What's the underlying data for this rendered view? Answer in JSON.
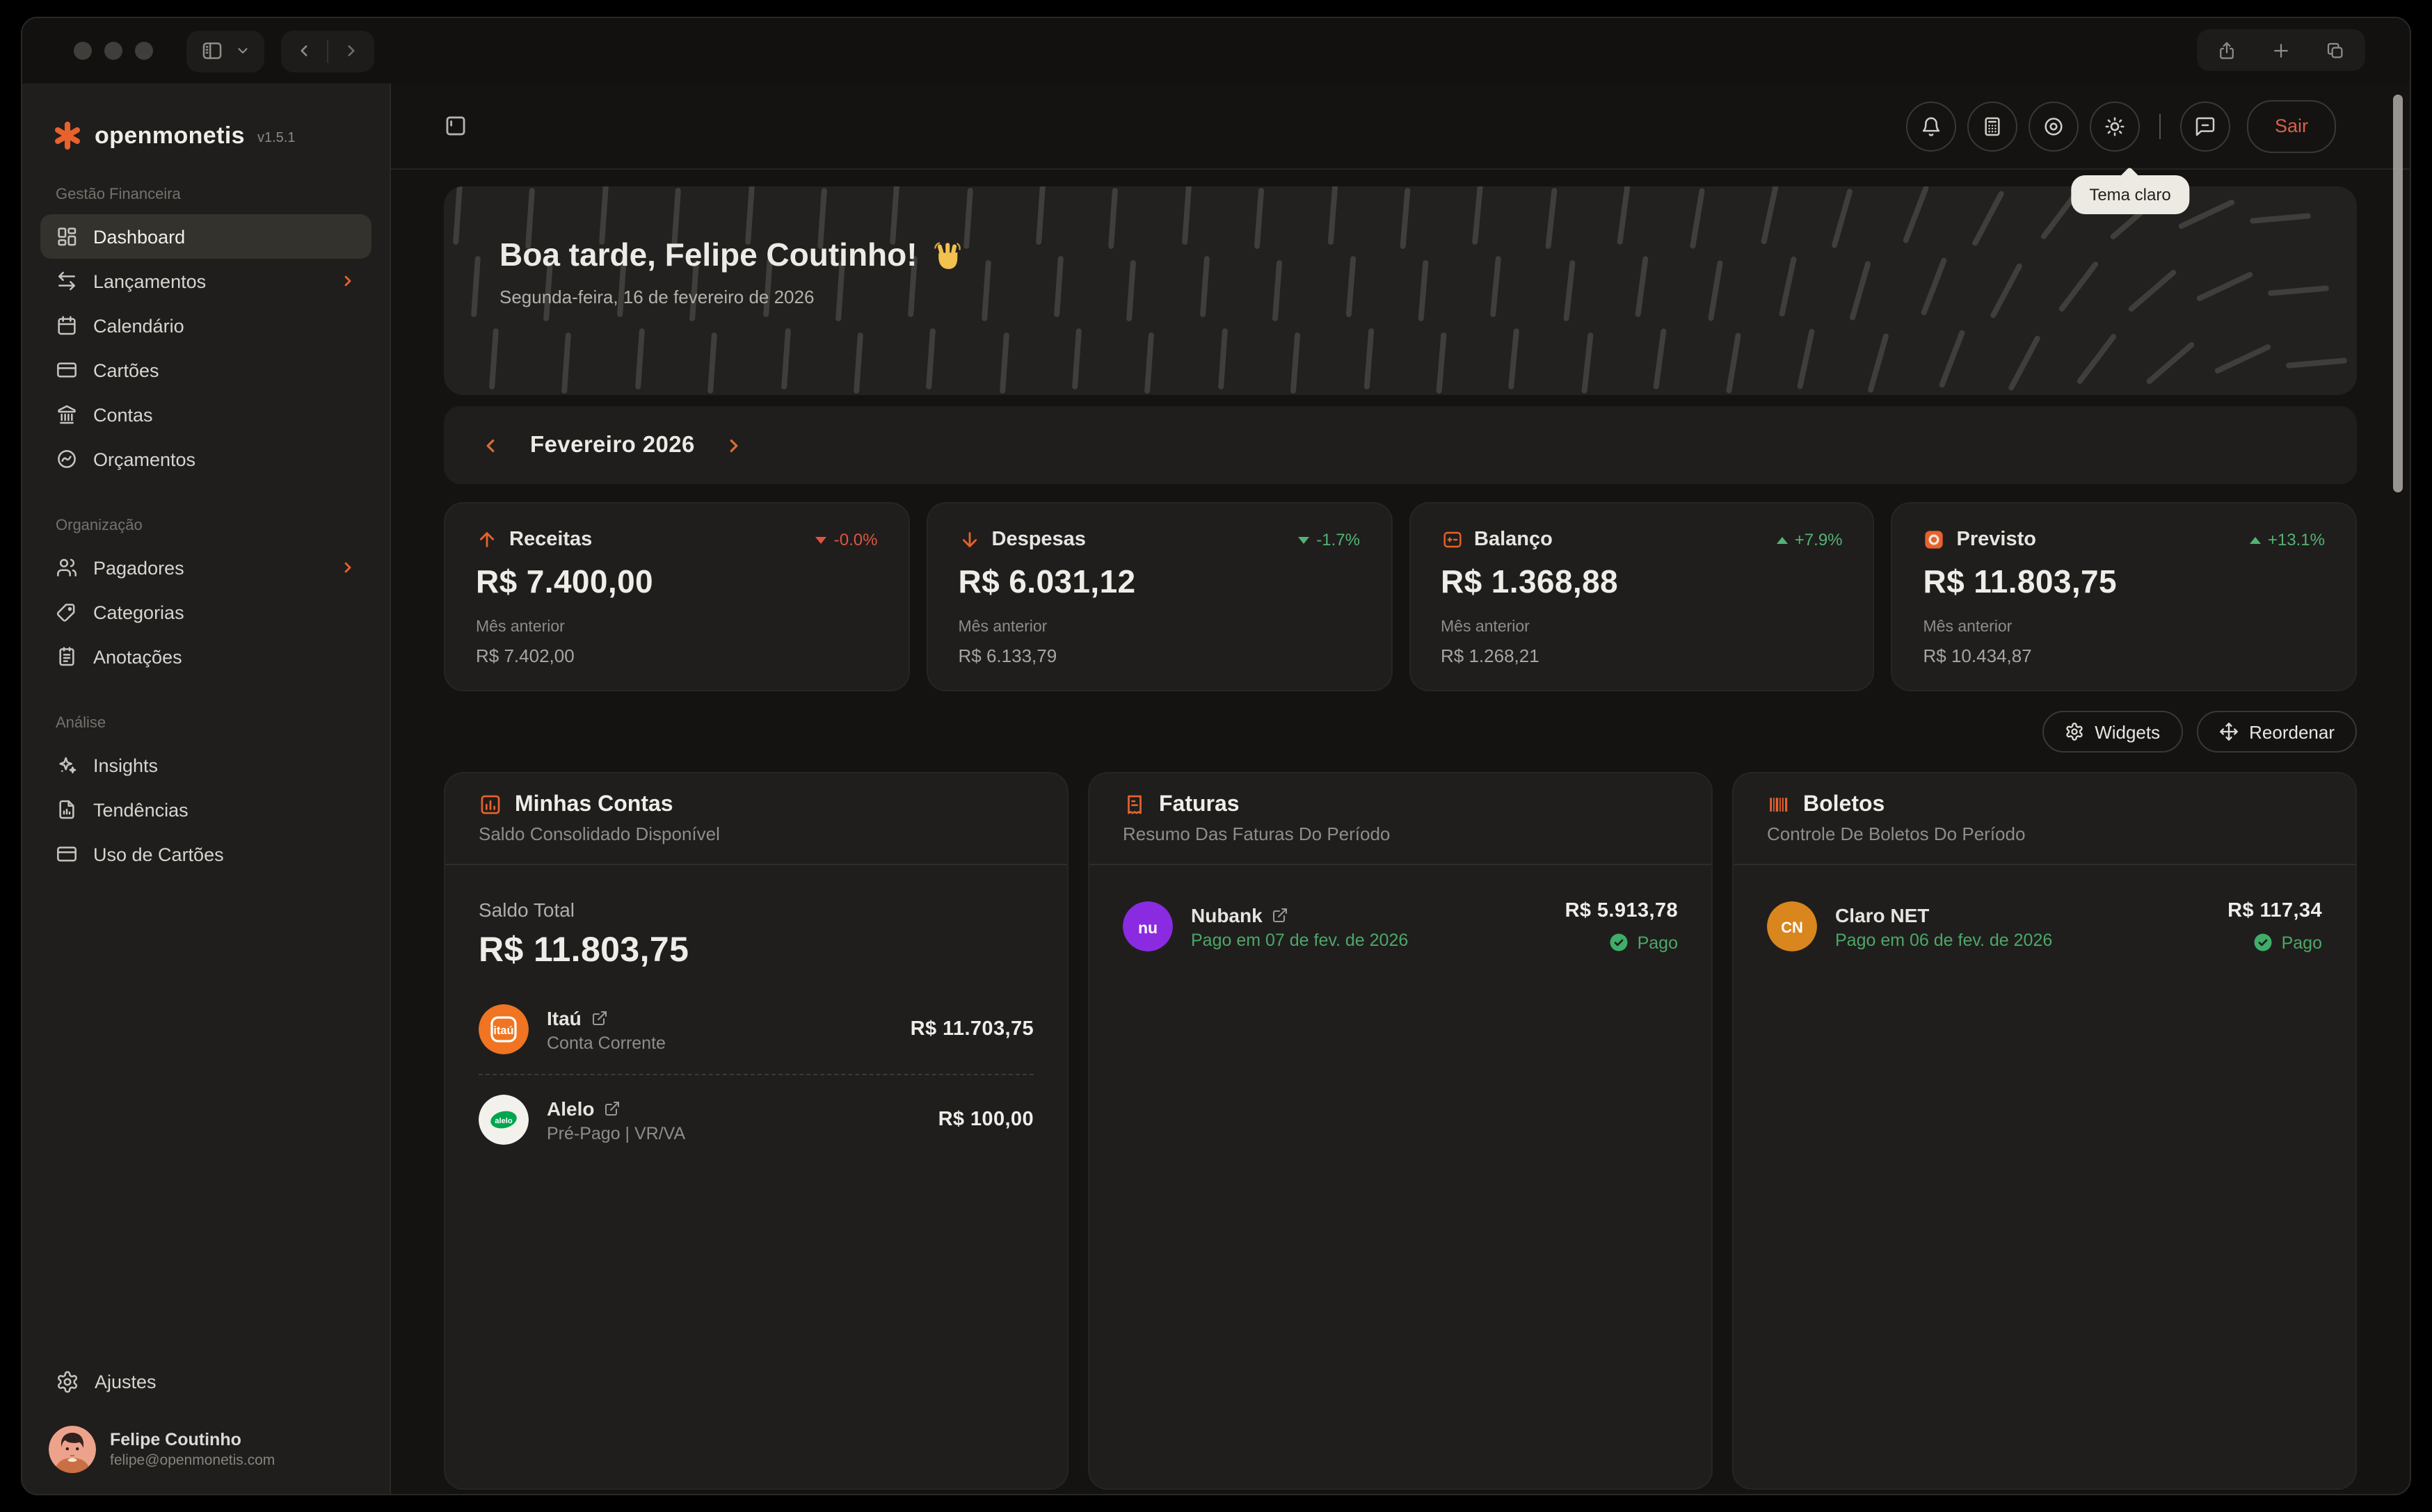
{
  "sidebar": {
    "logo_text": "openmonetis",
    "version": "v1.5.1",
    "sections": [
      {
        "label": "Gestão Financeira",
        "items": [
          {
            "label": "Dashboard",
            "icon": "dashboard",
            "active": true
          },
          {
            "label": "Lançamentos",
            "icon": "transactions",
            "chevron": true
          },
          {
            "label": "Calendário",
            "icon": "calendar"
          },
          {
            "label": "Cartões",
            "icon": "card"
          },
          {
            "label": "Contas",
            "icon": "bank"
          },
          {
            "label": "Orçamentos",
            "icon": "budget"
          }
        ]
      },
      {
        "label": "Organização",
        "items": [
          {
            "label": "Pagadores",
            "icon": "users",
            "chevron": true
          },
          {
            "label": "Categorias",
            "icon": "tag"
          },
          {
            "label": "Anotações",
            "icon": "notes"
          }
        ]
      },
      {
        "label": "Análise",
        "items": [
          {
            "label": "Insights",
            "icon": "sparkles"
          },
          {
            "label": "Tendências",
            "icon": "trends"
          },
          {
            "label": "Uso de Cartões",
            "icon": "card"
          }
        ]
      }
    ],
    "footer": {
      "settings_label": "Ajustes",
      "user_name": "Felipe Coutinho",
      "user_email": "felipe@openmonetis.com"
    }
  },
  "header": {
    "icon_buttons": [
      {
        "icon": "bell"
      },
      {
        "icon": "calculator"
      },
      {
        "icon": "eye"
      },
      {
        "icon": "sun"
      }
    ],
    "feedback_icon": "chat",
    "logout_label": "Sair",
    "tooltip": "Tema claro"
  },
  "banner": {
    "greeting": "Boa tarde, Felipe Coutinho!",
    "wave_emoji": "👋",
    "date": "Segunda-feira, 16 de fevereiro de 2026"
  },
  "month_selector": {
    "label": "Fevereiro 2026"
  },
  "stats": [
    {
      "title": "Receitas",
      "icon": "arrow-up",
      "value": "R$ 7.400,00",
      "delta": "-0.0%",
      "delta_dir": "down",
      "delta_color": "red",
      "prev_label": "Mês anterior",
      "prev_value": "R$ 7.402,00"
    },
    {
      "title": "Despesas",
      "icon": "arrow-down",
      "value": "R$ 6.031,12",
      "delta": "-1.7%",
      "delta_dir": "down",
      "delta_color": "green",
      "prev_label": "Mês anterior",
      "prev_value": "R$ 6.133,79"
    },
    {
      "title": "Balanço",
      "icon": "diff",
      "value": "R$ 1.368,88",
      "delta": "+7.9%",
      "delta_dir": "up",
      "delta_color": "green",
      "prev_label": "Mês anterior",
      "prev_value": "R$ 1.268,21"
    },
    {
      "title": "Previsto",
      "icon": "target",
      "value": "R$ 11.803,75",
      "delta": "+13.1%",
      "delta_dir": "up",
      "delta_color": "green",
      "prev_label": "Mês anterior",
      "prev_value": "R$ 10.434,87"
    }
  ],
  "actions": {
    "widgets_label": "Widgets",
    "reorder_label": "Reordenar"
  },
  "widgets": {
    "accounts": {
      "title": "Minhas Contas",
      "icon": "barchart-square",
      "subtitle": "Saldo Consolidado Disponível",
      "total_label": "Saldo Total",
      "total_value": "R$ 11.803,75",
      "rows": [
        {
          "name": "Itaú",
          "logo": "itau",
          "external": true,
          "detail": "Conta Corrente",
          "value": "R$ 11.703,75"
        },
        {
          "name": "Alelo",
          "logo": "alelo",
          "external": true,
          "detail": "Pré-Pago | VR/VA",
          "value": "R$ 100,00"
        }
      ]
    },
    "invoices": {
      "title": "Faturas",
      "icon": "receipt",
      "subtitle": "Resumo Das Faturas Do Período",
      "rows": [
        {
          "name": "Nubank",
          "logo": "nubank",
          "external": true,
          "detail": "Pago em 07 de fev. de 2026",
          "value": "R$ 5.913,78",
          "status": "Pago"
        }
      ]
    },
    "bills": {
      "title": "Boletos",
      "icon": "barcode",
      "subtitle": "Controle De Boletos Do Período",
      "rows": [
        {
          "name": "Claro NET",
          "logo": "cn",
          "external": false,
          "detail": "Pago em 06 de fev. de 2026",
          "value": "R$ 117,34",
          "status": "Pago"
        }
      ]
    }
  },
  "colors": {
    "accent": "#e8622c",
    "green": "#4da767",
    "red": "#e0543f",
    "logout": "#da604a"
  }
}
